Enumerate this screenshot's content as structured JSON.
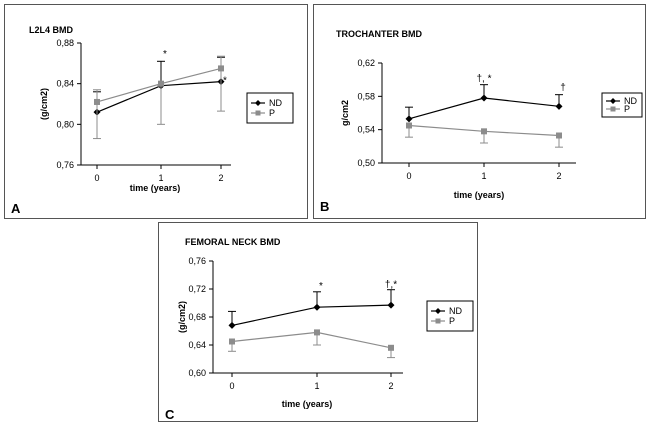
{
  "chart_data": [
    {
      "type": "line",
      "panel_label": "A",
      "title": "L2L4 BMD",
      "xlabel": "time (years)",
      "ylabel": "(g/cm2)",
      "x": [
        "0",
        "1",
        "2"
      ],
      "yticks": [
        "0,76",
        "0,80",
        "0,84",
        "0,88"
      ],
      "ylim": [
        0.76,
        0.88
      ],
      "series": [
        {
          "name": "ND",
          "values": [
            0.812,
            0.838,
            0.842
          ],
          "err_up": [
            0.02,
            0.024,
            0.024
          ],
          "err_down": [
            0.0,
            0.0,
            0.0
          ],
          "color": "#000000",
          "marker": "diamond"
        },
        {
          "name": "P",
          "values": [
            0.822,
            0.84,
            0.855
          ],
          "err_up": [
            0.012,
            0.0,
            0.012
          ],
          "err_down": [
            0.036,
            0.04,
            0.042
          ],
          "color": "#8c8c8c",
          "marker": "square"
        }
      ],
      "annotations": [
        {
          "text": "*",
          "x": "1",
          "y": 0.866
        },
        {
          "text": "*",
          "x": "2",
          "y": 0.84
        }
      ],
      "legend": "right",
      "grid": false
    },
    {
      "type": "line",
      "panel_label": "B",
      "title": "TROCHANTER BMD",
      "xlabel": "time (years)",
      "ylabel": "g/cm2",
      "x": [
        "0",
        "1",
        "2"
      ],
      "yticks": [
        "0,50",
        "0,54",
        "0,58",
        "0,62"
      ],
      "ylim": [
        0.5,
        0.62
      ],
      "series": [
        {
          "name": "ND",
          "values": [
            0.553,
            0.578,
            0.568
          ],
          "err_up": [
            0.014,
            0.016,
            0.014
          ],
          "err_down": [
            0.0,
            0.0,
            0.0
          ],
          "color": "#000000",
          "marker": "diamond"
        },
        {
          "name": "P",
          "values": [
            0.545,
            0.538,
            0.533
          ],
          "err_up": [
            0.0,
            0.0,
            0.0
          ],
          "err_down": [
            0.014,
            0.014,
            0.014
          ],
          "color": "#8c8c8c",
          "marker": "square"
        }
      ],
      "annotations": [
        {
          "text": "†, *",
          "x": "1",
          "y": 0.598
        },
        {
          "text": "†",
          "x": "2",
          "y": 0.587
        }
      ],
      "legend": "right",
      "grid": false
    },
    {
      "type": "line",
      "panel_label": "C",
      "title": "FEMORAL NECK BMD",
      "xlabel": "time (years)",
      "ylabel": "(g/cm2)",
      "x": [
        "0",
        "1",
        "2"
      ],
      "yticks": [
        "0,60",
        "0,64",
        "0,68",
        "0,72",
        "0,76"
      ],
      "ylim": [
        0.6,
        0.76
      ],
      "series": [
        {
          "name": "ND",
          "values": [
            0.668,
            0.694,
            0.697
          ],
          "err_up": [
            0.02,
            0.022,
            0.022
          ],
          "err_down": [
            0.0,
            0.0,
            0.0
          ],
          "color": "#000000",
          "marker": "diamond"
        },
        {
          "name": "P",
          "values": [
            0.645,
            0.658,
            0.636
          ],
          "err_up": [
            0.0,
            0.0,
            0.0
          ],
          "err_down": [
            0.014,
            0.018,
            0.014
          ],
          "color": "#8c8c8c",
          "marker": "square"
        }
      ],
      "annotations": [
        {
          "text": "*",
          "x": "1",
          "y": 0.72
        },
        {
          "text": "†,*",
          "x": "2",
          "y": 0.722
        }
      ],
      "legend": "right",
      "grid": false
    }
  ]
}
